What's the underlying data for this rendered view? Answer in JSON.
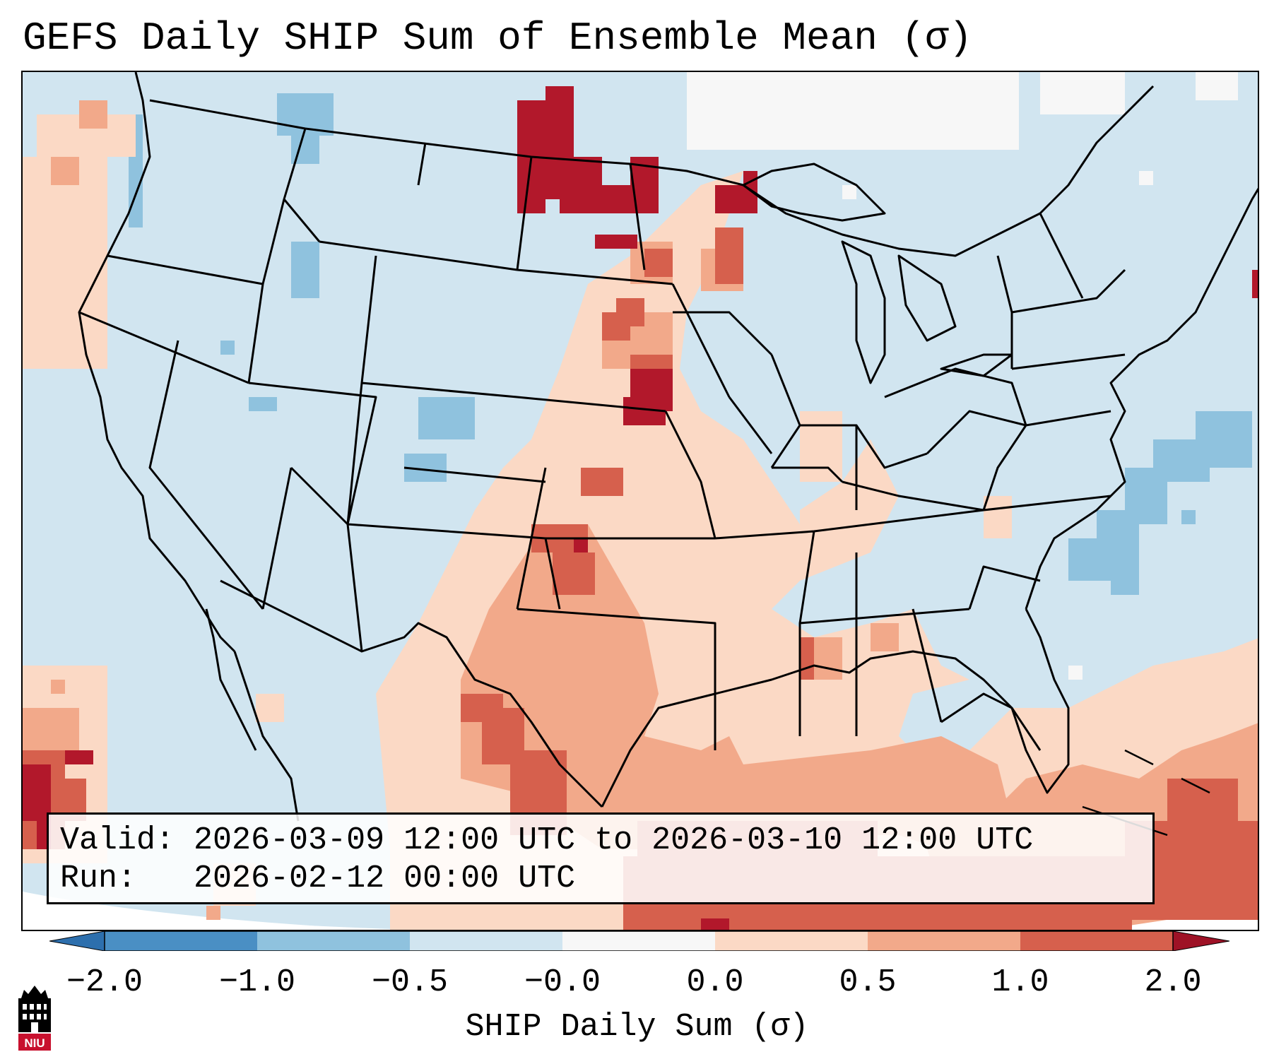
{
  "title": "GEFS Daily SHIP Sum of Ensemble Mean (σ)",
  "valid_text": "Valid: 2026-03-09 12:00 UTC to 2026-03-10 12:00 UTC",
  "run_text": "Run:   2026-02-12 00:00 UTC",
  "colorbar": {
    "label": "SHIP Daily Sum (σ)",
    "ticks": [
      "−2.0",
      "−1.0",
      "−0.5",
      "−0.0",
      "0.0",
      "0.5",
      "1.0",
      "2.0"
    ],
    "bins": [
      "#4a8fc4",
      "#8fc2de",
      "#d1e5f0",
      "#f7f7f7",
      "#fbd9c5",
      "#f2a98a",
      "#d6604d",
      "#b2182b"
    ],
    "extend_low": "#2d6fad",
    "extend_high": "#9e1226"
  },
  "logo": {
    "text": "NIU",
    "icon": "niu-building-icon",
    "color": "#c8102e"
  },
  "map": {
    "region": "Continental United States",
    "ocean_color": "#d1e5f0",
    "line_color": "#000000",
    "icons": [
      "state-boundaries",
      "coastlines",
      "great-lakes"
    ]
  }
}
